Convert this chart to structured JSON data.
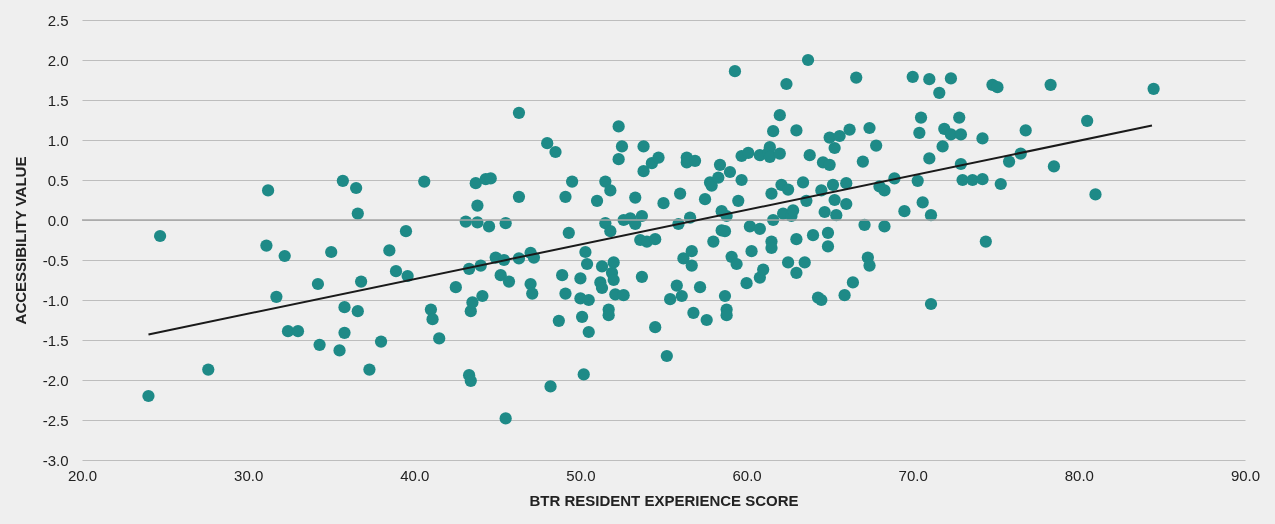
{
  "chart_data": {
    "type": "scatter",
    "xlabel": "BTR RESIDENT EXPERIENCE SCORE",
    "ylabel": "ACCESSIBILITY VALUE",
    "xlim": [
      20,
      90
    ],
    "ylim": [
      -3,
      2.5
    ],
    "xticks": [
      {
        "value": 20,
        "label": "20.0"
      },
      {
        "value": 30,
        "label": "30.0"
      },
      {
        "value": 40,
        "label": "40.0"
      },
      {
        "value": 50,
        "label": "50.0"
      },
      {
        "value": 60,
        "label": "60.0"
      },
      {
        "value": 70,
        "label": "70.0"
      },
      {
        "value": 80,
        "label": "80.0"
      },
      {
        "value": 90,
        "label": "90.0"
      }
    ],
    "yticks": [
      {
        "value": -3,
        "label": "-3.0"
      },
      -2.5,
      {
        "value": -2,
        "label": "-2.0"
      },
      -1.5,
      {
        "value": -1,
        "label": "-1.0"
      },
      -0.5,
      {
        "value": 0,
        "label": "0.0"
      },
      0.5,
      {
        "value": 1,
        "label": "1.0"
      },
      1.5,
      {
        "value": 2,
        "label": "2.0"
      },
      2.5
    ],
    "grid": "y",
    "ref_lines": [
      {
        "axis": "y",
        "value": 0,
        "color": "#a6a6a6"
      }
    ],
    "series": [
      {
        "marker": "circle",
        "color": "#1e8a87",
        "x": [
          24.0,
          24.7,
          27.6,
          31.2,
          31.1,
          31.7,
          32.2,
          32.4,
          33.0,
          34.2,
          34.3,
          35.0,
          35.5,
          35.7,
          35.8,
          35.8,
          36.5,
          36.6,
          36.6,
          36.8,
          37.3,
          38.0,
          38.5,
          38.9,
          39.5,
          39.6,
          40.6,
          41.0,
          41.1,
          41.5,
          42.5,
          43.1,
          43.3,
          43.3,
          43.4,
          43.4,
          43.5,
          43.7,
          43.8,
          43.8,
          44.0,
          44.1,
          44.3,
          44.6,
          44.5,
          44.9,
          45.2,
          45.4,
          45.5,
          45.5,
          45.7,
          46.3,
          46.3,
          46.3,
          47.0,
          47.0,
          47.1,
          47.2,
          48.0,
          48.2,
          48.5,
          48.7,
          48.9,
          49.1,
          49.3,
          49.5,
          49.1,
          50.0,
          50.0,
          50.1,
          50.2,
          50.3,
          50.4,
          50.5,
          50.5,
          51.0,
          51.2,
          51.3,
          51.3,
          51.5,
          51.5,
          51.7,
          51.7,
          51.8,
          51.8,
          51.9,
          52.0,
          52.0,
          52.1,
          52.3,
          52.3,
          52.5,
          52.6,
          52.6,
          53.0,
          53.3,
          53.3,
          53.6,
          53.7,
          53.7,
          53.8,
          53.8,
          54.0,
          54.3,
          54.5,
          54.5,
          54.7,
          55.0,
          55.2,
          55.4,
          55.9,
          55.8,
          56.0,
          56.1,
          56.2,
          56.4,
          56.4,
          56.6,
          56.7,
          56.7,
          56.9,
          56.8,
          57.2,
          57.5,
          57.6,
          57.8,
          57.9,
          58.0,
          58.3,
          58.4,
          58.5,
          58.5,
          58.7,
          58.7,
          58.8,
          58.8,
          58.8,
          59.0,
          59.1,
          59.3,
          59.4,
          59.5,
          59.7,
          59.7,
          60.0,
          60.1,
          60.2,
          60.3,
          60.8,
          60.8,
          60.8,
          61.0,
          61.3,
          61.4,
          61.4,
          61.5,
          61.5,
          61.5,
          61.6,
          61.6,
          62.0,
          62.0,
          62.1,
          62.2,
          62.4,
          62.5,
          62.5,
          62.7,
          62.8,
          63.0,
          63.0,
          63.0,
          63.4,
          63.5,
          63.6,
          63.7,
          63.8,
          64.0,
          64.3,
          64.5,
          64.5,
          64.6,
          64.7,
          64.9,
          64.9,
          65.0,
          65.0,
          65.2,
          65.3,
          65.3,
          65.4,
          65.6,
          65.9,
          66.0,
          66.0,
          66.2,
          66.4,
          66.6,
          67.0,
          67.1,
          67.3,
          67.4,
          67.4,
          67.8,
          68.0,
          68.3,
          68.3,
          68.9,
          69.5,
          70.0,
          70.3,
          70.4,
          70.5,
          70.6,
          71.0,
          71.0,
          71.1,
          71.1,
          71.6,
          71.9,
          71.8,
          72.3,
          72.3,
          72.8,
          72.9,
          72.9,
          73.0,
          73.6,
          74.2,
          74.2,
          74.4,
          74.8,
          75.1,
          75.3,
          75.8,
          76.5,
          76.8,
          78.3,
          78.5,
          80.5,
          81.0,
          84.5
        ],
        "values": [
          -2.2,
          -0.2,
          -1.87,
          0.37,
          -0.32,
          -0.96,
          -0.45,
          -1.39,
          -1.39,
          -0.8,
          -1.56,
          -0.4,
          -1.63,
          0.49,
          -1.09,
          -1.41,
          0.4,
          0.08,
          -1.14,
          -0.77,
          -1.87,
          -1.52,
          -0.38,
          -0.64,
          -0.14,
          -0.7,
          0.48,
          -1.12,
          -1.24,
          -1.48,
          -0.84,
          -0.02,
          -0.61,
          -1.94,
          -2.01,
          -1.14,
          -1.03,
          0.46,
          0.18,
          -0.03,
          -0.57,
          -0.95,
          0.51,
          0.52,
          -0.08,
          -0.47,
          -0.69,
          -0.5,
          -0.04,
          -2.48,
          -0.77,
          1.34,
          0.29,
          -0.48,
          -0.41,
          -0.8,
          -0.92,
          -0.47,
          0.96,
          -2.08,
          0.85,
          -1.26,
          -0.69,
          -0.92,
          -0.16,
          0.48,
          0.29,
          -0.73,
          -0.98,
          -1.21,
          -1.93,
          -0.4,
          -0.55,
          -1.0,
          -1.4,
          0.24,
          -0.78,
          -0.85,
          -0.58,
          0.48,
          -0.04,
          -1.12,
          -1.19,
          0.37,
          -0.14,
          -0.66,
          -0.75,
          -0.53,
          -0.93,
          1.17,
          0.76,
          0.92,
          -0.94,
          0.0,
          0.02,
          -0.05,
          0.28,
          -0.25,
          0.05,
          -0.71,
          0.61,
          0.92,
          -0.27,
          0.71,
          -0.24,
          -1.34,
          0.78,
          0.21,
          -1.7,
          -0.99,
          -0.05,
          -0.82,
          0.33,
          -0.95,
          -0.48,
          0.72,
          0.78,
          0.03,
          -0.39,
          -0.57,
          0.74,
          -1.16,
          -0.84,
          0.26,
          -1.25,
          0.47,
          0.43,
          -0.27,
          0.53,
          0.69,
          0.11,
          -0.13,
          -0.95,
          -0.14,
          0.05,
          -1.12,
          -1.19,
          0.6,
          -0.46,
          1.86,
          -0.55,
          0.24,
          0.5,
          0.8,
          -0.79,
          0.84,
          -0.08,
          -0.39,
          0.81,
          -0.11,
          -0.72,
          -0.62,
          0.84,
          0.91,
          0.79,
          -0.27,
          -0.35,
          0.33,
          0.0,
          1.11,
          1.31,
          0.83,
          0.44,
          0.08,
          1.7,
          0.38,
          -0.53,
          0.05,
          0.12,
          1.12,
          -0.66,
          -0.24,
          0.47,
          -0.53,
          0.24,
          2.0,
          0.81,
          -0.19,
          -0.97,
          0.37,
          -1.0,
          0.72,
          0.1,
          -0.33,
          -0.16,
          1.03,
          0.69,
          0.44,
          0.9,
          0.25,
          0.06,
          1.05,
          -0.94,
          0.46,
          0.2,
          1.13,
          -0.78,
          1.78,
          0.73,
          -0.06,
          -0.47,
          -0.57,
          1.15,
          0.93,
          0.42,
          -0.08,
          0.37,
          0.52,
          0.11,
          1.79,
          0.49,
          1.09,
          1.28,
          0.22,
          1.76,
          0.77,
          0.06,
          -1.05,
          1.59,
          1.14,
          0.92,
          1.07,
          1.77,
          1.28,
          1.07,
          0.7,
          0.5,
          0.5,
          1.02,
          0.51,
          -0.27,
          1.69,
          1.66,
          0.45,
          0.73,
          0.83,
          1.12,
          1.69,
          0.67,
          1.24,
          0.32,
          1.64
        ]
      },
      {
        "type": "line",
        "line_style": "solid",
        "marker": "none",
        "color": "#1a1a1a",
        "x": [
          24.0,
          84.4
        ],
        "values": [
          -1.43,
          1.18
        ]
      }
    ]
  }
}
